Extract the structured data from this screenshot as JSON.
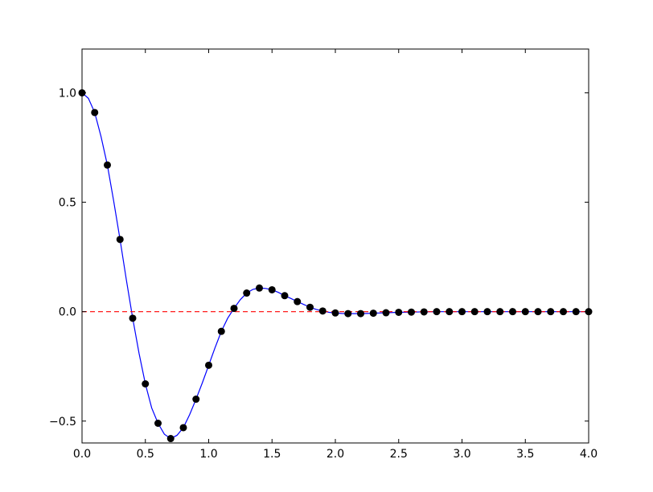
{
  "chart_data": {
    "type": "line",
    "title": "",
    "xlabel": "",
    "ylabel": "",
    "xlim": [
      0.0,
      4.0
    ],
    "ylim": [
      -0.6,
      1.2
    ],
    "xticks": [
      0.0,
      0.5,
      1.0,
      1.5,
      2.0,
      2.5,
      3.0,
      3.5,
      4.0
    ],
    "xtick_labels": [
      "0.0",
      "0.5",
      "1.0",
      "1.5",
      "2.0",
      "2.5",
      "3.0",
      "3.5",
      "4.0"
    ],
    "yticks": [
      -0.5,
      0.0,
      0.5,
      1.0
    ],
    "ytick_labels": [
      "−0.5",
      "0.0",
      "0.5",
      "1.0"
    ],
    "grid": false,
    "series": [
      {
        "kind": "curve",
        "color": "#0000ff",
        "linestyle": "solid",
        "x": [
          0.0,
          0.05,
          0.1,
          0.15,
          0.2,
          0.25,
          0.3,
          0.35,
          0.4,
          0.45,
          0.5,
          0.55,
          0.6,
          0.65,
          0.7,
          0.75,
          0.8,
          0.85,
          0.9,
          0.95,
          1.0,
          1.05,
          1.1,
          1.15,
          1.2,
          1.25,
          1.3,
          1.35,
          1.4,
          1.45,
          1.5,
          1.55,
          1.6,
          1.65,
          1.7,
          1.75,
          1.8,
          1.85,
          1.9,
          1.95,
          2.0,
          2.05,
          2.1,
          2.15,
          2.2,
          2.25,
          2.3,
          2.35,
          2.4,
          2.45,
          2.5,
          2.6,
          2.7,
          2.8,
          2.9,
          3.0,
          3.2,
          3.4,
          3.6,
          3.8,
          4.0
        ],
        "y": [
          1.0,
          0.975,
          0.91,
          0.8,
          0.67,
          0.505,
          0.33,
          0.145,
          -0.03,
          -0.19,
          -0.33,
          -0.44,
          -0.51,
          -0.56,
          -0.58,
          -0.565,
          -0.53,
          -0.47,
          -0.4,
          -0.325,
          -0.245,
          -0.165,
          -0.09,
          -0.03,
          0.015,
          0.055,
          0.085,
          0.102,
          0.108,
          0.106,
          0.1,
          0.088,
          0.073,
          0.06,
          0.046,
          0.033,
          0.02,
          0.01,
          0.003,
          -0.003,
          -0.006,
          -0.008,
          -0.009,
          -0.009,
          -0.009,
          -0.008,
          -0.007,
          -0.006,
          -0.005,
          -0.004,
          -0.003,
          -0.002,
          -0.001,
          0.0,
          0.0,
          0.0,
          0.0,
          0.0,
          0.0,
          0.0,
          0.0
        ]
      },
      {
        "kind": "points",
        "color": "#000000",
        "marker": "circle",
        "x": [
          0.0,
          0.1,
          0.2,
          0.3,
          0.4,
          0.5,
          0.6,
          0.7,
          0.8,
          0.9,
          1.0,
          1.1,
          1.2,
          1.3,
          1.4,
          1.5,
          1.6,
          1.7,
          1.8,
          1.9,
          2.0,
          2.1,
          2.2,
          2.3,
          2.4,
          2.5,
          2.6,
          2.7,
          2.8,
          2.9,
          3.0,
          3.1,
          3.2,
          3.3,
          3.4,
          3.5,
          3.6,
          3.7,
          3.8,
          3.9,
          4.0
        ],
        "y": [
          1.0,
          0.91,
          0.67,
          0.33,
          -0.03,
          -0.33,
          -0.51,
          -0.58,
          -0.53,
          -0.4,
          -0.245,
          -0.09,
          0.015,
          0.085,
          0.108,
          0.1,
          0.073,
          0.046,
          0.02,
          0.003,
          -0.006,
          -0.009,
          -0.009,
          -0.007,
          -0.005,
          -0.003,
          -0.002,
          -0.001,
          0.0,
          0.0,
          0.0,
          0.0,
          0.0,
          0.0,
          0.0,
          0.0,
          0.0,
          0.0,
          0.0,
          0.0,
          0.0
        ]
      },
      {
        "kind": "hline",
        "color": "#ff0000",
        "linestyle": "dashed",
        "x": [
          0.0,
          4.0
        ],
        "y": [
          0.0,
          0.0
        ]
      }
    ]
  }
}
